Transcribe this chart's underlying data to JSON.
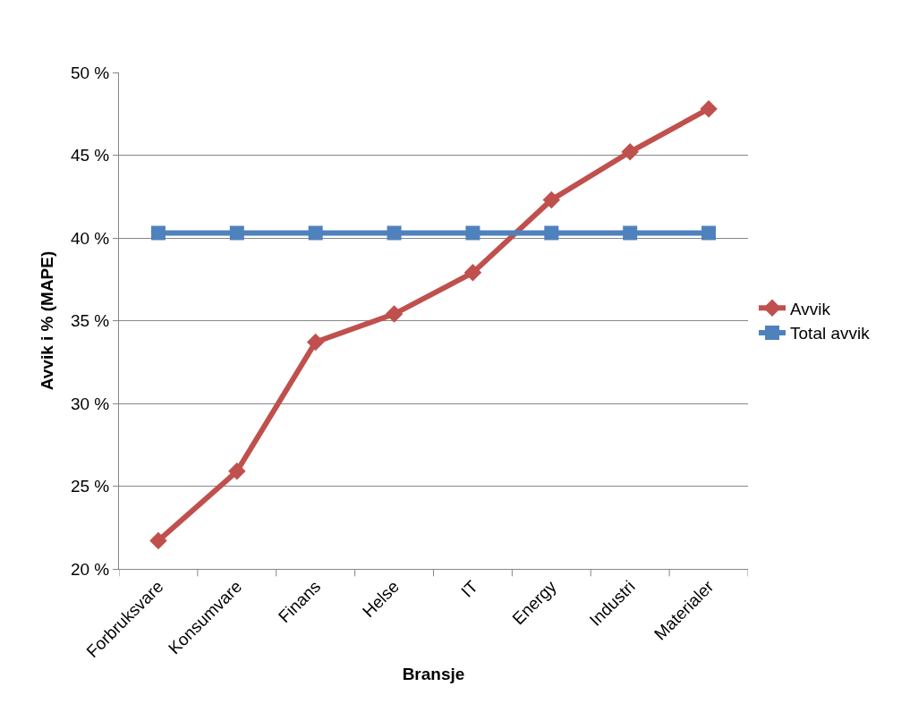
{
  "chart_data": {
    "type": "line",
    "xlabel": "Bransje",
    "ylabel": "Avvik i % (MAPE)",
    "categories": [
      "Forbruksvare",
      "Konsumvare",
      "Finans",
      "Helse",
      "IT",
      "Energy",
      "Industri",
      "Materialer"
    ],
    "series": [
      {
        "name": "Avvik",
        "color": "#c0504d",
        "marker": "diamond",
        "values": [
          21.7,
          25.9,
          33.7,
          35.4,
          37.9,
          42.3,
          45.2,
          47.8
        ]
      },
      {
        "name": "Total avvik",
        "color": "#4f81bd",
        "marker": "square",
        "values": [
          40.3,
          40.3,
          40.3,
          40.3,
          40.3,
          40.3,
          40.3,
          40.3
        ]
      }
    ],
    "ylim": [
      20,
      50
    ],
    "yticks": [
      {
        "value": 20,
        "label": "20 %"
      },
      {
        "value": 25,
        "label": "25 %"
      },
      {
        "value": 30,
        "label": "30 %"
      },
      {
        "value": 35,
        "label": "35 %"
      },
      {
        "value": 40,
        "label": "40 %"
      },
      {
        "value": 45,
        "label": "45 %"
      },
      {
        "value": 50,
        "label": "50 %"
      }
    ],
    "grid": "y",
    "legend": "right",
    "line_style": "solid"
  }
}
